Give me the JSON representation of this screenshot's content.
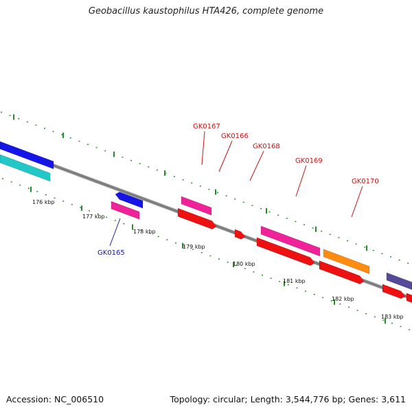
{
  "title": "Geobacillus kaustophilus HTA426, complete genome",
  "footer": {
    "accession": "Accession: NC_006510",
    "stats": "Topology: circular; Length: 3,544,776 bp; Genes: 3,611"
  },
  "colors": {
    "backbone": "#7a7a7a",
    "tick": "#2a8a2a",
    "forward_label": "#cc1111",
    "reverse_label": "#1a1aa0",
    "blue": "#1515e8",
    "cyan": "#22c8c8",
    "magenta": "#ee2299",
    "red": "#ee1111",
    "orange": "#ff8c10",
    "slate": "#554a99"
  },
  "scale_labels": [
    "176 kbp",
    "177 kbp",
    "178 kbp",
    "179 kbp",
    "180 kbp",
    "181 kbp",
    "182 kbp",
    "183 kbp"
  ],
  "gene_labels": [
    {
      "text": "GK0165",
      "strand": "reverse"
    },
    {
      "text": "GK0167",
      "strand": "forward"
    },
    {
      "text": "GK0166",
      "strand": "forward"
    },
    {
      "text": "GK0168",
      "strand": "forward"
    },
    {
      "text": "GK0169",
      "strand": "forward"
    },
    {
      "text": "GK0170",
      "strand": "forward"
    }
  ]
}
